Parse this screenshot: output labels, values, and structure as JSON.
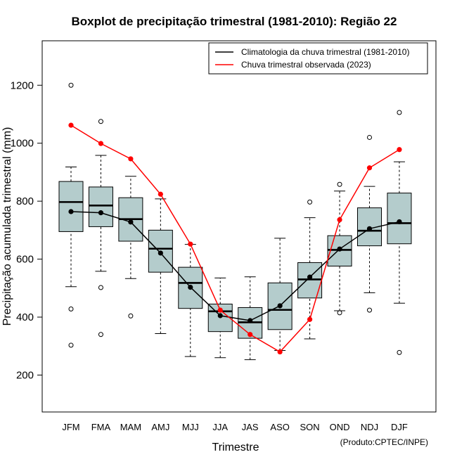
{
  "chart_data": {
    "type": "boxplot",
    "title": "Boxplot de precipitação trimestral (1981-2010): Região 22",
    "xlabel": "Trimestre",
    "ylabel": "Precipitação acumulada trimestral (mm)",
    "credit": "(Produto:CPTEC/INPE)",
    "ylim": [
      70,
      1350
    ],
    "yticks": [
      200,
      400,
      600,
      800,
      1000,
      1200
    ],
    "categories": [
      "JFM",
      "FMA",
      "MAM",
      "AMJ",
      "MJJ",
      "JJA",
      "JAS",
      "ASO",
      "SON",
      "OND",
      "NDJ",
      "DJF"
    ],
    "boxes": [
      {
        "whisker_low": 505,
        "q1": 695,
        "median": 797,
        "q3": 868,
        "whisker_high": 918,
        "outliers": [
          1200,
          428,
          303
        ]
      },
      {
        "whisker_low": 558,
        "q1": 712,
        "median": 785,
        "q3": 849,
        "whisker_high": 958,
        "outliers": [
          1075,
          502,
          340
        ]
      },
      {
        "whisker_low": 533,
        "q1": 662,
        "median": 738,
        "q3": 812,
        "whisker_high": 886,
        "outliers": [
          404
        ]
      },
      {
        "whisker_low": 343,
        "q1": 555,
        "median": 636,
        "q3": 700,
        "whisker_high": 808,
        "outliers": []
      },
      {
        "whisker_low": 264,
        "q1": 430,
        "median": 518,
        "q3": 572,
        "whisker_high": 651,
        "outliers": []
      },
      {
        "whisker_low": 260,
        "q1": 350,
        "median": 420,
        "q3": 445,
        "whisker_high": 535,
        "outliers": []
      },
      {
        "whisker_low": 253,
        "q1": 327,
        "median": 382,
        "q3": 433,
        "whisker_high": 539,
        "outliers": []
      },
      {
        "whisker_low": 285,
        "q1": 357,
        "median": 425,
        "q3": 518,
        "whisker_high": 672,
        "outliers": []
      },
      {
        "whisker_low": 325,
        "q1": 466,
        "median": 530,
        "q3": 588,
        "whisker_high": 743,
        "outliers": [
          797
        ]
      },
      {
        "whisker_low": 422,
        "q1": 576,
        "median": 632,
        "q3": 681,
        "whisker_high": 835,
        "outliers": [
          858,
          415
        ]
      },
      {
        "whisker_low": 484,
        "q1": 646,
        "median": 698,
        "q3": 777,
        "whisker_high": 851,
        "outliers": [
          1020,
          424
        ]
      },
      {
        "whisker_low": 448,
        "q1": 653,
        "median": 724,
        "q3": 828,
        "whisker_high": 936,
        "outliers": [
          1106,
          278
        ]
      }
    ],
    "series": [
      {
        "name": "Climatologia da chuva trimestral (1981-2010)",
        "color": "#000000",
        "values": [
          764,
          760,
          728,
          621,
          503,
          405,
          388,
          439,
          538,
          635,
          705,
          729
        ]
      },
      {
        "name": "Chuva trimestral observada (2023)",
        "color": "#ff0000",
        "values": [
          1062,
          999,
          946,
          824,
          652,
          424,
          340,
          280,
          392,
          736,
          915,
          978
        ]
      }
    ],
    "legend_position": "top-right",
    "box_fill": "#b4cccc"
  }
}
